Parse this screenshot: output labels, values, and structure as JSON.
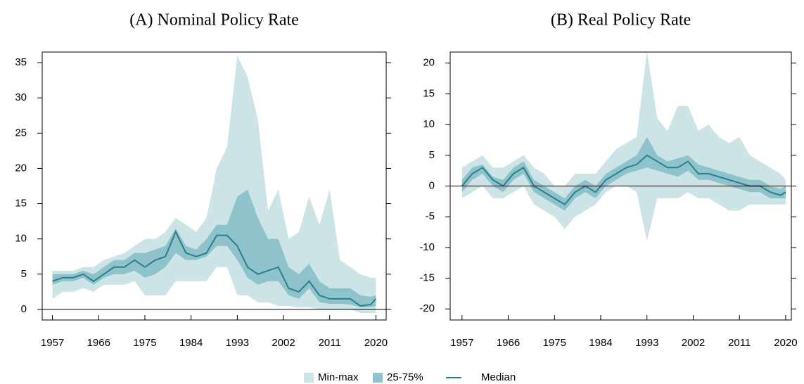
{
  "chart_data": [
    {
      "type": "band-line",
      "title": "(A) Nominal Policy Rate",
      "x": [
        1957,
        1959,
        1961,
        1963,
        1965,
        1967,
        1969,
        1971,
        1973,
        1975,
        1977,
        1979,
        1981,
        1983,
        1985,
        1987,
        1989,
        1991,
        1993,
        1995,
        1997,
        1999,
        2001,
        2003,
        2005,
        2007,
        2009,
        2011,
        2013,
        2015,
        2017,
        2019,
        2020
      ],
      "xlim": [
        1955,
        2022
      ],
      "xticks": [
        1957,
        1966,
        1975,
        1984,
        1993,
        2002,
        2011,
        2020
      ],
      "ylim": [
        -1.5,
        36.5
      ],
      "yticks": [
        0,
        5,
        10,
        15,
        20,
        25,
        30,
        35
      ],
      "zero_line": true,
      "series": [
        {
          "name": "Min-max",
          "color": "#cde4e7",
          "low": [
            1.5,
            2.5,
            2.5,
            3,
            2.5,
            3.5,
            3.5,
            3.5,
            4,
            2,
            2,
            2,
            4,
            4,
            4,
            4,
            6,
            6,
            2,
            2,
            1,
            1,
            0.5,
            0.5,
            0.3,
            0.3,
            0,
            0,
            0,
            0,
            -0.5,
            -0.5,
            -0.5
          ],
          "high": [
            5.5,
            5.5,
            5.5,
            6,
            6,
            7,
            7.5,
            8,
            9,
            10,
            10,
            11,
            13,
            12,
            11,
            13,
            20,
            23,
            36,
            33,
            27,
            14,
            17,
            10,
            11,
            16,
            12,
            17,
            7,
            6,
            5,
            4.5,
            4.5
          ]
        },
        {
          "name": "25-75%",
          "color": "#8fc3cb",
          "low": [
            3.5,
            4,
            4,
            4.5,
            3.5,
            4.5,
            5,
            5,
            5.5,
            4.5,
            5,
            6,
            8,
            7,
            7,
            7.5,
            9,
            9,
            7,
            4.5,
            3.5,
            4,
            4,
            2,
            1.5,
            3,
            1,
            0.8,
            0.8,
            0.7,
            0.3,
            0.3,
            0.5
          ],
          "high": [
            5,
            5,
            5,
            5.5,
            5,
            6,
            7,
            7,
            8,
            8,
            8.5,
            9,
            11.5,
            9,
            8.5,
            10,
            12,
            12,
            16,
            17,
            13,
            10,
            10,
            6,
            5,
            6.5,
            4,
            3,
            3,
            3,
            2,
            1.8,
            2
          ]
        },
        {
          "name": "Median",
          "color": "#2a7f8e",
          "values": [
            4,
            4.5,
            4.5,
            5,
            4,
            5,
            6,
            6,
            7,
            6,
            7,
            7.5,
            11,
            8,
            7.5,
            8,
            10.5,
            10.5,
            9,
            6,
            5,
            5.5,
            6,
            3,
            2.5,
            4,
            2,
            1.5,
            1.5,
            1.5,
            0.5,
            0.7,
            1.5
          ]
        }
      ]
    },
    {
      "type": "band-line",
      "title": "(B) Real Policy Rate",
      "x": [
        1957,
        1959,
        1961,
        1963,
        1965,
        1967,
        1969,
        1971,
        1973,
        1975,
        1977,
        1979,
        1981,
        1983,
        1985,
        1987,
        1989,
        1991,
        1993,
        1995,
        1997,
        1999,
        2001,
        2003,
        2005,
        2007,
        2009,
        2011,
        2013,
        2015,
        2017,
        2019,
        2020
      ],
      "xlim": [
        1954.7,
        2021.1
      ],
      "xticks": [
        1957,
        1966,
        1975,
        1984,
        1993,
        2002,
        2011,
        2020
      ],
      "ylim": [
        -21.8,
        21.8
      ],
      "yticks": [
        -20,
        -15,
        -10,
        -5,
        0,
        5,
        10,
        15,
        20
      ],
      "zero_line": true,
      "series": [
        {
          "low": [
            -2,
            -1,
            0,
            -2,
            -2,
            -1,
            0,
            -3,
            -4,
            -5,
            -7,
            -5,
            -4,
            -3,
            -1,
            0,
            0,
            -1,
            -9,
            -2,
            -2,
            -2,
            -1,
            -2,
            -2,
            -3,
            -4,
            -4,
            -3,
            -3,
            -3,
            -3,
            -3
          ],
          "high": [
            3,
            4,
            5,
            3,
            3,
            4,
            5,
            3,
            2,
            0,
            0,
            2,
            2,
            2,
            4,
            6,
            7,
            8,
            22,
            11,
            9,
            13,
            13,
            9,
            10,
            8,
            7,
            8,
            5,
            4,
            3,
            2,
            1
          ]
        },
        {
          "low": [
            -1,
            1,
            2,
            0,
            -1,
            1,
            2,
            -1,
            -2,
            -3,
            -4,
            -2,
            -1,
            -2,
            0,
            1,
            2,
            2.5,
            3,
            2.5,
            2,
            1.5,
            2.5,
            1,
            1,
            0.5,
            0,
            -0.5,
            -1,
            -1,
            -2,
            -2,
            -2
          ],
          "high": [
            1,
            3,
            3.5,
            1.5,
            1,
            3,
            4,
            1,
            0,
            -1,
            -2,
            0,
            1,
            0,
            2,
            3,
            4,
            5,
            8,
            5,
            4,
            4.5,
            5,
            3.5,
            3,
            2.5,
            2,
            1.5,
            1,
            1,
            0,
            -0.5,
            0
          ]
        },
        {
          "values": [
            0,
            2,
            3,
            1,
            0,
            2,
            3,
            0,
            -1,
            -2,
            -3,
            -1,
            0,
            -1,
            1,
            2,
            3,
            3.5,
            5,
            4,
            3,
            3,
            4,
            2,
            2,
            1.5,
            1,
            0.5,
            0,
            0,
            -1,
            -1.5,
            -1
          ]
        }
      ]
    }
  ]
}
